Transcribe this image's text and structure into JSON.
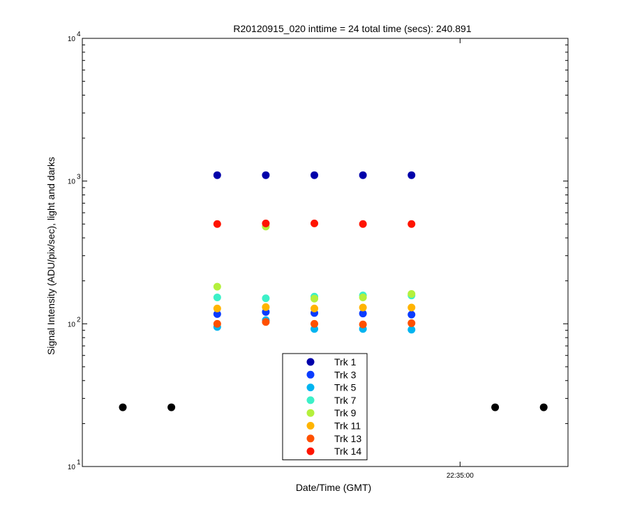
{
  "chart_data": {
    "type": "scatter",
    "title": "R20120915_020 inttime = 24 total time (secs): 240.891",
    "xlabel": "Date/Time (GMT)",
    "ylabel": "Signal Intensity (ADU/pix/sec), light and darks",
    "y_scale": "log",
    "ylim": [
      10,
      10000
    ],
    "y_ticks": [
      {
        "value": 10,
        "base": "10",
        "exp": "1"
      },
      {
        "value": 100,
        "base": "10",
        "exp": "2"
      },
      {
        "value": 1000,
        "base": "10",
        "exp": "3"
      },
      {
        "value": 10000,
        "base": "10",
        "exp": "4"
      }
    ],
    "xlim": [
      "22:32:40",
      "22:35:40"
    ],
    "x_ticks": [
      "22:35:00"
    ],
    "legend_position": "bottom-center",
    "grid": false,
    "series": [
      {
        "name": "Trk 1",
        "color": "#0000aa",
        "x": [
          "22:33:30",
          "22:33:48",
          "22:34:06",
          "22:34:24",
          "22:34:42"
        ],
        "y": [
          1100,
          1100,
          1100,
          1100,
          1100
        ]
      },
      {
        "name": "Trk 3",
        "color": "#0a3cff",
        "x": [
          "22:33:30",
          "22:33:48",
          "22:34:06",
          "22:34:24",
          "22:34:42"
        ],
        "y": [
          117,
          121,
          119,
          118,
          116
        ]
      },
      {
        "name": "Trk 5",
        "color": "#00b4f0",
        "x": [
          "22:33:30",
          "22:33:48",
          "22:34:06",
          "22:34:24",
          "22:34:42"
        ],
        "y": [
          95,
          106,
          92,
          92,
          91
        ]
      },
      {
        "name": "Trk 7",
        "color": "#3cf0c8",
        "x": [
          "22:33:30",
          "22:33:48",
          "22:34:06",
          "22:34:24",
          "22:34:42"
        ],
        "y": [
          153,
          151,
          155,
          158,
          158
        ]
      },
      {
        "name": "Trk 9",
        "color": "#b4f03c",
        "x": [
          "22:33:30",
          "22:33:48",
          "22:34:06",
          "22:34:24",
          "22:34:42"
        ],
        "y": [
          182,
          480,
          150,
          153,
          162
        ]
      },
      {
        "name": "Trk 11",
        "color": "#ffb400",
        "x": [
          "22:33:30",
          "22:33:48",
          "22:34:06",
          "22:34:24",
          "22:34:42"
        ],
        "y": [
          128,
          131,
          128,
          130,
          130
        ]
      },
      {
        "name": "Trk 13",
        "color": "#ff5000",
        "x": [
          "22:33:30",
          "22:33:48",
          "22:34:06",
          "22:34:24",
          "22:34:42"
        ],
        "y": [
          100,
          103,
          100,
          99,
          101
        ]
      },
      {
        "name": "Trk 14",
        "color": "#ff1400",
        "x": [
          "22:33:30",
          "22:33:48",
          "22:34:06",
          "22:34:24",
          "22:34:42"
        ],
        "y": [
          500,
          505,
          505,
          500,
          500
        ]
      }
    ],
    "darks": {
      "color": "#000000",
      "x": [
        "22:32:55",
        "22:33:13",
        "22:35:13",
        "22:35:31"
      ],
      "y": [
        26,
        26,
        26,
        26
      ]
    }
  }
}
